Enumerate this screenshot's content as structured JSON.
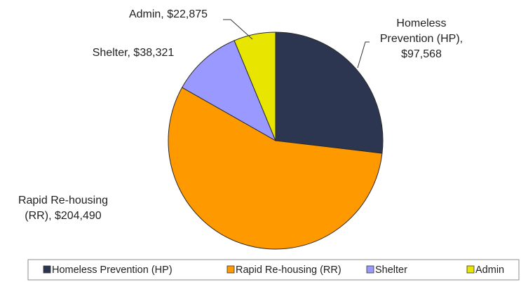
{
  "chart_data": {
    "type": "pie",
    "title": "",
    "slices": [
      {
        "name": "Homeless Prevention (HP)",
        "value": 97568,
        "color": "#2d3651",
        "label_lines": [
          "Homeless",
          "Prevention (HP),",
          "$97,568"
        ]
      },
      {
        "name": "Rapid Re-housing (RR)",
        "value": 204490,
        "color": "#ff9900",
        "label_lines": [
          "Rapid Re-housing",
          "(RR),  $204,490"
        ]
      },
      {
        "name": "Shelter",
        "value": 38321,
        "color": "#9999ff",
        "label_lines": [
          "Shelter,  $38,321"
        ]
      },
      {
        "name": "Admin",
        "value": 22875,
        "color": "#e8e600",
        "label_lines": [
          "Admin,  $22,875"
        ]
      }
    ],
    "legend": {
      "position": "bottom",
      "items": [
        {
          "label": "Homeless Prevention (HP)",
          "color": "#2d3651"
        },
        {
          "label": "Rapid Re-housing (RR)",
          "color": "#ff9900"
        },
        {
          "label": "Shelter",
          "color": "#9999ff"
        },
        {
          "label": "Admin",
          "color": "#e8e600"
        }
      ]
    }
  }
}
